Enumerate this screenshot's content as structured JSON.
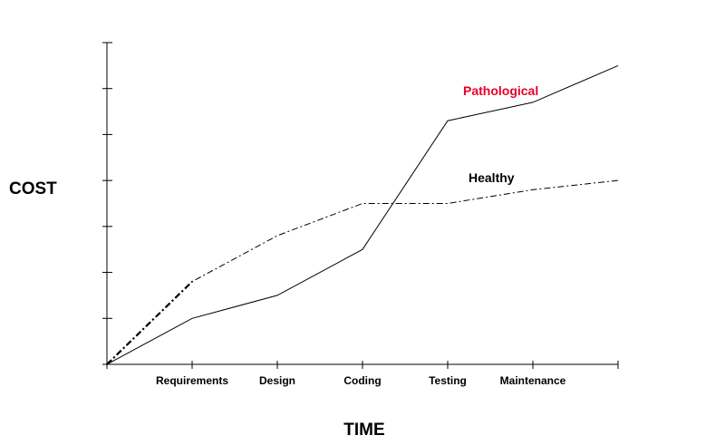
{
  "chart_data": {
    "type": "line",
    "title": "",
    "xlabel": "TIME",
    "ylabel": "COST",
    "categories": [
      "",
      "Requirements",
      "Design",
      "Coding",
      "Testing",
      "Maintenance",
      ""
    ],
    "ylim": [
      0,
      7
    ],
    "yticks": [
      0,
      1,
      2,
      3,
      4,
      5,
      6,
      7
    ],
    "grid": false,
    "legend": "none",
    "series": [
      {
        "name": "Pathological",
        "label_color": "#e8002a",
        "line_style": "solid",
        "values": [
          0,
          1.0,
          1.5,
          2.5,
          5.3,
          5.7,
          6.5
        ]
      },
      {
        "name": "Healthy",
        "label_color": "#000000",
        "line_style": "dash-dot",
        "values": [
          0,
          1.8,
          2.8,
          3.5,
          3.5,
          3.8,
          4.0
        ]
      }
    ]
  }
}
